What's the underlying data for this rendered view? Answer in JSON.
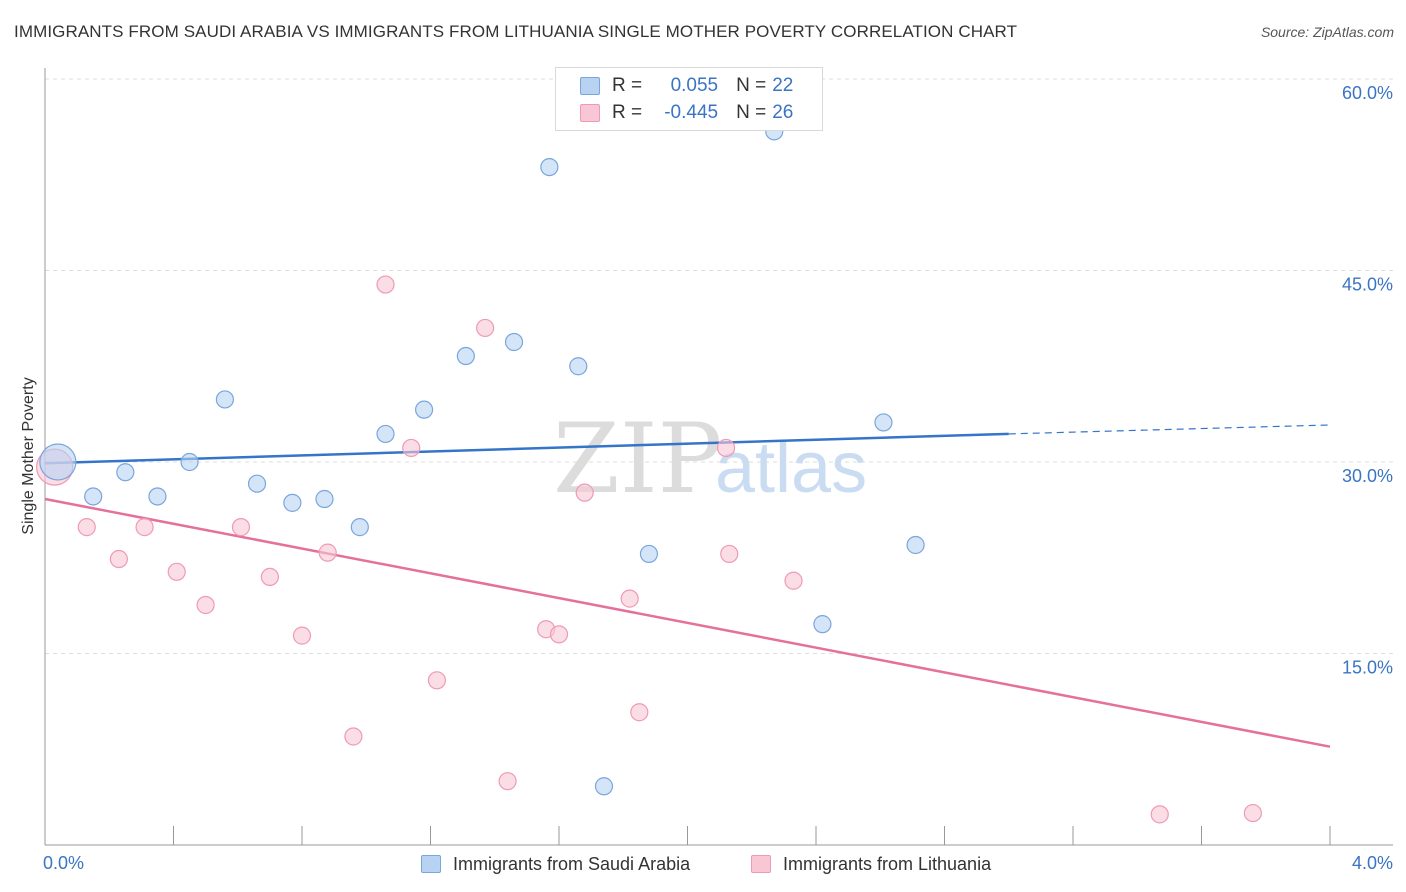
{
  "header": {
    "title": "IMMIGRANTS FROM SAUDI ARABIA VS IMMIGRANTS FROM LITHUANIA SINGLE MOTHER POVERTY CORRELATION CHART",
    "source": "Source: ZipAtlas.com"
  },
  "watermark": {
    "zip": "ZIP",
    "atlas": "atlas"
  },
  "legend": {
    "series1": {
      "r_label": "R =",
      "r_value": "0.055",
      "n_label": "N =",
      "n_value": "22"
    },
    "series2": {
      "r_label": "R =",
      "r_value": "-0.445",
      "n_label": "N =",
      "n_value": "26"
    }
  },
  "colors": {
    "blue_fill": "#b8d3f2",
    "blue_stroke": "#7aa6dc",
    "blue_line": "#3474c9",
    "pink_fill": "#f9c6d6",
    "pink_stroke": "#ee9ab6",
    "pink_line": "#e5709b",
    "axis_text": "#3a74c4",
    "grid": "#dddddd"
  },
  "chart_data": {
    "type": "scatter",
    "title": "IMMIGRANTS FROM SAUDI ARABIA VS IMMIGRANTS FROM LITHUANIA SINGLE MOTHER POVERTY CORRELATION CHART",
    "xlabel": "",
    "ylabel": "Single Mother Poverty",
    "xlim": [
      0,
      4.0
    ],
    "ylim": [
      0,
      60
    ],
    "x_tick_labels": [
      "0.0%",
      "4.0%"
    ],
    "y_ticks": [
      15,
      30,
      45,
      60
    ],
    "y_tick_labels": [
      "15.0%",
      "30.0%",
      "45.0%",
      "60.0%"
    ],
    "grid": true,
    "legend_position": "top-center",
    "series": [
      {
        "name": "Immigrants from Saudi Arabia",
        "color": "#7aa6dc",
        "r": 0.055,
        "n": 22,
        "points": [
          [
            0.04,
            30.0
          ],
          [
            0.15,
            27.3
          ],
          [
            0.25,
            29.2
          ],
          [
            0.35,
            27.3
          ],
          [
            0.45,
            30.0
          ],
          [
            0.56,
            34.9
          ],
          [
            0.66,
            28.3
          ],
          [
            0.77,
            26.8
          ],
          [
            0.87,
            27.1
          ],
          [
            0.98,
            24.9
          ],
          [
            1.06,
            32.2
          ],
          [
            1.18,
            34.1
          ],
          [
            1.31,
            38.3
          ],
          [
            1.46,
            39.4
          ],
          [
            1.57,
            53.1
          ],
          [
            1.66,
            37.5
          ],
          [
            1.74,
            4.6
          ],
          [
            1.88,
            22.8
          ],
          [
            2.27,
            55.9
          ],
          [
            2.42,
            17.3
          ],
          [
            2.61,
            33.1
          ],
          [
            2.71,
            23.5
          ]
        ],
        "trend": {
          "x": [
            0,
            3.0
          ],
          "y": [
            29.9,
            32.2
          ],
          "dashed_extension": {
            "x": [
              3.0,
              4.0
            ],
            "y": [
              32.2,
              32.9
            ]
          }
        }
      },
      {
        "name": "Immigrants from Lithuania",
        "color": "#ee9ab6",
        "r": -0.445,
        "n": 26,
        "points": [
          [
            0.03,
            29.6
          ],
          [
            0.13,
            24.9
          ],
          [
            0.23,
            22.4
          ],
          [
            0.31,
            24.9
          ],
          [
            0.41,
            21.4
          ],
          [
            0.5,
            18.8
          ],
          [
            0.61,
            24.9
          ],
          [
            0.7,
            21.0
          ],
          [
            0.8,
            16.4
          ],
          [
            0.88,
            22.9
          ],
          [
            0.96,
            8.5
          ],
          [
            1.06,
            43.9
          ],
          [
            1.14,
            31.1
          ],
          [
            1.22,
            12.9
          ],
          [
            1.37,
            40.5
          ],
          [
            1.44,
            5.0
          ],
          [
            1.56,
            16.9
          ],
          [
            1.6,
            16.5
          ],
          [
            1.68,
            27.6
          ],
          [
            1.82,
            19.3
          ],
          [
            1.85,
            10.4
          ],
          [
            2.12,
            31.1
          ],
          [
            2.13,
            22.8
          ],
          [
            2.33,
            20.7
          ],
          [
            3.47,
            2.4
          ],
          [
            3.76,
            2.5
          ]
        ],
        "trend": {
          "x": [
            0,
            4.0
          ],
          "y": [
            27.1,
            7.7
          ]
        }
      }
    ]
  }
}
